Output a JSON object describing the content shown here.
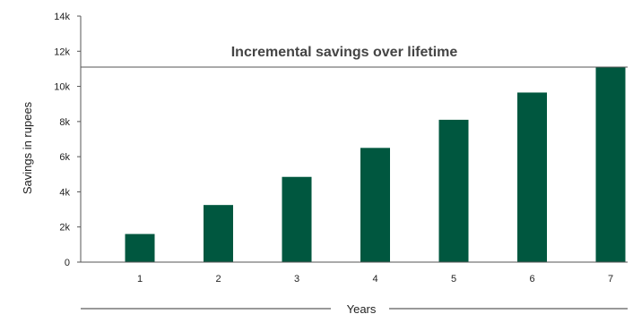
{
  "chart_data": {
    "type": "bar",
    "categories": [
      "1",
      "2",
      "3",
      "4",
      "5",
      "6",
      "7"
    ],
    "values": [
      1600,
      3250,
      4850,
      6500,
      8100,
      9650,
      11100
    ],
    "ylabel": "Savings in rupees",
    "xlabel": "Years",
    "ylim": [
      0,
      14000
    ],
    "yticks": [
      0,
      2000,
      4000,
      6000,
      8000,
      10000,
      12000,
      14000
    ],
    "ytick_labels": [
      "0",
      "2k",
      "4k",
      "6k",
      "8k",
      "10k",
      "12k",
      "14k"
    ],
    "reference_line": {
      "value": 11100,
      "label": "Incremental savings over lifetime"
    },
    "grid": false,
    "legend": "none",
    "colors": {
      "bar": "#00573f",
      "axis": "#555555",
      "text": "#222222"
    }
  }
}
